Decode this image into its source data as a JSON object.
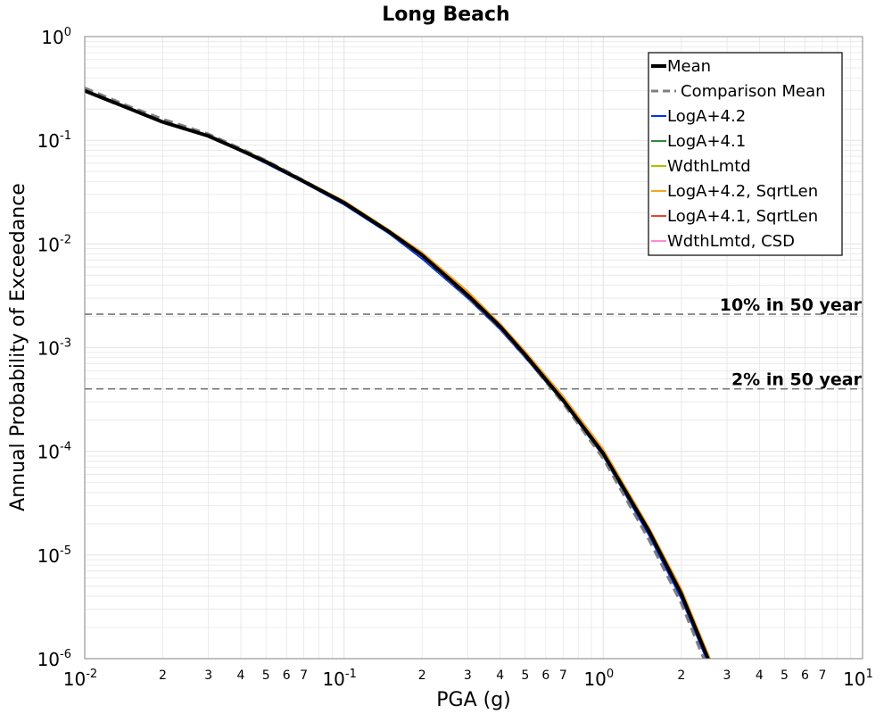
{
  "chart_data": {
    "type": "line",
    "title": "Long Beach",
    "xlabel": "PGA (g)",
    "ylabel": "Annual Probability of Exceedance",
    "xscale": "log",
    "yscale": "log",
    "xlim": [
      0.01,
      10
    ],
    "ylim": [
      1e-06,
      1
    ],
    "grid": true,
    "legend_position": "top-right",
    "x_ticks": [
      {
        "base": "10",
        "exp": "-2"
      },
      {
        "base": "10",
        "exp": "-1"
      },
      {
        "base": "10",
        "exp": "0"
      },
      {
        "base": "10",
        "exp": "1"
      }
    ],
    "y_ticks": [
      {
        "base": "10",
        "exp": "0"
      },
      {
        "base": "10",
        "exp": "-1"
      },
      {
        "base": "10",
        "exp": "-2"
      },
      {
        "base": "10",
        "exp": "-3"
      },
      {
        "base": "10",
        "exp": "-4"
      },
      {
        "base": "10",
        "exp": "-5"
      },
      {
        "base": "10",
        "exp": "-6"
      }
    ],
    "x_minor_labels": [
      "2",
      "3",
      "4",
      "5",
      "6",
      "7"
    ],
    "x": [
      0.01,
      0.015,
      0.02,
      0.03,
      0.04,
      0.05,
      0.07,
      0.1,
      0.15,
      0.2,
      0.3,
      0.4,
      0.5,
      0.7,
      1.0,
      1.5,
      2.0,
      3.0,
      4.0
    ],
    "series": [
      {
        "name": "Mean",
        "color": "#000000",
        "dash": "solid",
        "width": 4,
        "values": [
          0.3,
          0.2,
          0.15,
          0.11,
          0.08,
          0.062,
          0.04,
          0.025,
          0.013,
          0.0078,
          0.0032,
          0.0016,
          0.00085,
          0.00031,
          9.5e-05,
          1.7e-05,
          4.2e-06,
          3.6e-07,
          9e-07
        ]
      },
      {
        "name": "Comparison Mean",
        "color": "#7f7f7f",
        "dash": "dashed",
        "width": 3,
        "values": [
          0.32,
          0.21,
          0.16,
          0.115,
          0.083,
          0.064,
          0.041,
          0.025,
          0.0128,
          0.0076,
          0.0031,
          0.00155,
          0.00082,
          0.00029,
          8.5e-05,
          1.4e-05,
          3.4e-06,
          2.8e-07,
          7e-07
        ]
      },
      {
        "name": "LogA+4.2",
        "color": "#0033ee",
        "dash": "solid",
        "width": 2,
        "values": [
          0.3,
          0.2,
          0.15,
          0.108,
          0.079,
          0.06,
          0.039,
          0.024,
          0.0125,
          0.0072,
          0.003,
          0.0015,
          0.0008,
          0.0003,
          9e-05,
          1.55e-05,
          3.8e-06,
          3.3e-07,
          8e-07
        ]
      },
      {
        "name": "LogA+4.1",
        "color": "#2e8b3a",
        "dash": "solid",
        "width": 2,
        "values": [
          0.3,
          0.2,
          0.15,
          0.11,
          0.08,
          0.062,
          0.04,
          0.025,
          0.013,
          0.0078,
          0.0032,
          0.0016,
          0.00085,
          0.00031,
          9.5e-05,
          1.7e-05,
          4.2e-06,
          3.6e-07,
          9e-07
        ]
      },
      {
        "name": "WdthLmtd",
        "color": "#a8c400",
        "dash": "solid",
        "width": 2,
        "values": [
          0.3,
          0.2,
          0.15,
          0.112,
          0.082,
          0.064,
          0.041,
          0.026,
          0.0135,
          0.0082,
          0.0034,
          0.0017,
          0.0009,
          0.00033,
          0.0001,
          1.8e-05,
          4.5e-06,
          3.8e-07,
          9.5e-07
        ]
      },
      {
        "name": "LogA+4.2, SqrtLen",
        "color": "#f5a623",
        "dash": "solid",
        "width": 2,
        "values": [
          0.3,
          0.2,
          0.15,
          0.112,
          0.082,
          0.063,
          0.041,
          0.026,
          0.0135,
          0.0083,
          0.0035,
          0.0017,
          0.00092,
          0.00034,
          0.000105,
          1.85e-05,
          4.7e-06,
          4e-07,
          1e-06
        ]
      },
      {
        "name": "LogA+4.1, SqrtLen",
        "color": "#e8472a",
        "dash": "solid",
        "width": 2,
        "values": [
          0.3,
          0.2,
          0.15,
          0.111,
          0.081,
          0.062,
          0.04,
          0.025,
          0.0132,
          0.008,
          0.0033,
          0.00165,
          0.00088,
          0.00032,
          9.8e-05,
          1.75e-05,
          4.4e-06,
          3.7e-07,
          9.2e-07
        ]
      },
      {
        "name": "WdthLmtd, CSD",
        "color": "#ff88dd",
        "dash": "solid",
        "width": 2,
        "values": [
          0.3,
          0.2,
          0.15,
          0.11,
          0.08,
          0.062,
          0.04,
          0.025,
          0.013,
          0.0078,
          0.0032,
          0.0016,
          0.00085,
          0.00031,
          9.5e-05,
          1.7e-05,
          4.2e-06,
          3.6e-07,
          9e-07
        ]
      }
    ],
    "reference_lines": [
      {
        "label": "10% in 50 year",
        "y": 0.0021
      },
      {
        "label": "2% in 50 year",
        "y": 0.0004
      }
    ]
  },
  "colors": {
    "grid": "#e6e6e6",
    "reference_line": "#777777",
    "frame": "#888888"
  }
}
